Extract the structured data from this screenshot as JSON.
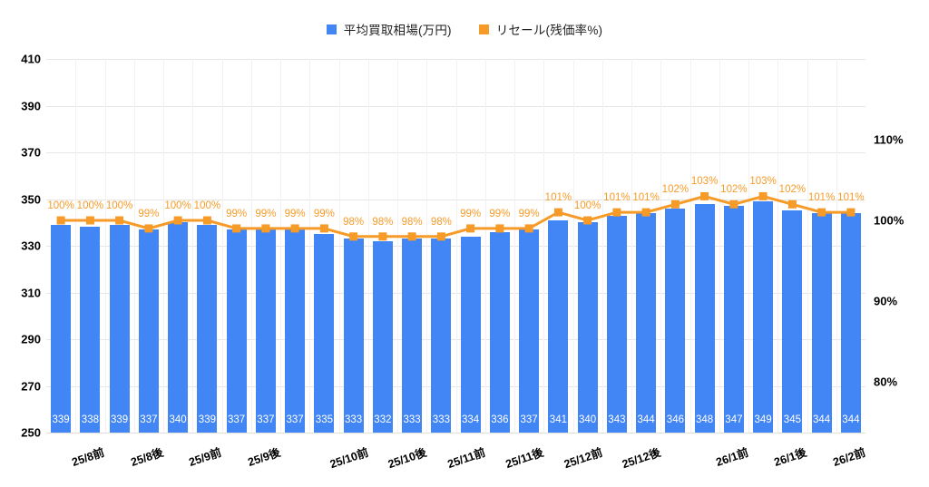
{
  "legend": {
    "items": [
      {
        "label": "平均買取相場(万円)",
        "color": "#4285F4"
      },
      {
        "label": "リセール(残価率%)",
        "color": "#F79B28"
      }
    ]
  },
  "chart_data": {
    "type": "bar",
    "subtype": "combo-bar-line-dual-axis",
    "title": "",
    "categories": [
      "25/8前",
      "25/8後",
      "25/9前",
      "25/9後",
      "25/10前",
      "25/10後",
      "25/11前",
      "25/11後",
      "25/12前",
      "25/12後",
      "26/1前",
      "26/1後",
      "26/2前"
    ],
    "category_bar_index": [
      2,
      4,
      6,
      8,
      11,
      13,
      15,
      17,
      19,
      21,
      24,
      26,
      28
    ],
    "series": [
      {
        "name": "平均買取相場(万円)",
        "type": "bar",
        "axis": "left",
        "color": "#4285F4",
        "values": [
          339,
          338,
          339,
          337,
          340,
          339,
          337,
          337,
          337,
          335,
          333,
          332,
          333,
          333,
          334,
          336,
          337,
          341,
          340,
          343,
          344,
          346,
          348,
          347,
          349,
          345,
          344,
          344
        ]
      },
      {
        "name": "リセール(残価率%)",
        "type": "line",
        "axis": "right",
        "color": "#F79B28",
        "unit": "%",
        "values": [
          100,
          100,
          100,
          99,
          100,
          100,
          99,
          99,
          99,
          99,
          98,
          98,
          98,
          98,
          99,
          99,
          99,
          101,
          100,
          101,
          101,
          102,
          103,
          102,
          103,
          102,
          101,
          101
        ]
      }
    ],
    "left_axis": {
      "min": 250,
      "max": 410,
      "ticks": [
        410,
        390,
        370,
        350,
        330,
        310,
        290,
        270,
        250
      ]
    },
    "right_axis": {
      "unit": "%",
      "ticks": [
        110,
        100,
        90,
        80
      ]
    },
    "grid": true,
    "legend_position": "top-center",
    "colors": {
      "bar": "#4285F4",
      "line": "#F79B28",
      "gridline": "#e6e6e6",
      "bar_label_text": "#ffffff"
    }
  }
}
